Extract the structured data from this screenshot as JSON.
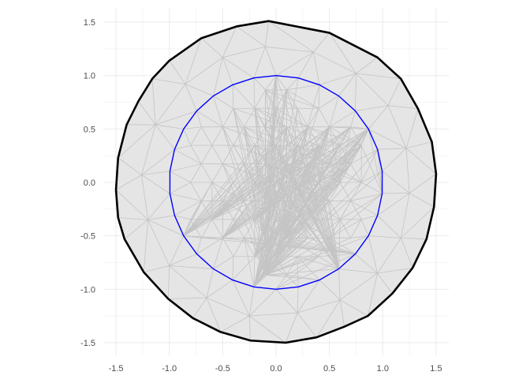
{
  "chart_data": {
    "type": "mesh",
    "title": "",
    "xlabel": "",
    "ylabel": "",
    "xlim": [
      -1.62,
      1.62
    ],
    "ylim": [
      -1.63,
      1.63
    ],
    "x_ticks": [
      -1.5,
      -1.0,
      -0.5,
      0.0,
      0.5,
      1.0,
      1.5
    ],
    "y_ticks": [
      -1.5,
      -1.0,
      -0.5,
      0.0,
      0.5,
      1.0,
      1.5
    ],
    "x_tick_labels": [
      "-1.5",
      "-1.0",
      "-0.5",
      "0.0",
      "0.5",
      "1.0",
      "1.5"
    ],
    "y_tick_labels": [
      "-1.5",
      "-1.0",
      "-0.5",
      "0.0",
      "0.5",
      "1.0",
      "1.5"
    ],
    "grid": true,
    "colors": {
      "fill": "#e5e5e5",
      "mesh": "#c4c4c4",
      "outer_boundary": "#000000",
      "inner_boundary": "#0000ff",
      "grid": "#ebebeb"
    },
    "outer_boundary": [
      [
        -0.07,
        1.51
      ],
      [
        0.5,
        1.4
      ],
      [
        0.95,
        1.17
      ],
      [
        1.17,
        0.97
      ],
      [
        1.33,
        0.69
      ],
      [
        1.46,
        0.38
      ],
      [
        1.5,
        0.08
      ],
      [
        1.48,
        -0.23
      ],
      [
        1.41,
        -0.53
      ],
      [
        1.28,
        -0.8
      ],
      [
        1.09,
        -1.04
      ],
      [
        0.86,
        -1.25
      ],
      [
        0.64,
        -1.35
      ],
      [
        0.38,
        -1.45
      ],
      [
        0.09,
        -1.5
      ],
      [
        -0.24,
        -1.48
      ],
      [
        -0.52,
        -1.4
      ],
      [
        -0.78,
        -1.27
      ],
      [
        -1.01,
        -1.09
      ],
      [
        -1.24,
        -0.84
      ],
      [
        -1.42,
        -0.53
      ],
      [
        -1.48,
        -0.33
      ],
      [
        -1.5,
        -0.07
      ],
      [
        -1.48,
        0.23
      ],
      [
        -1.4,
        0.54
      ],
      [
        -1.29,
        0.76
      ],
      [
        -1.16,
        0.97
      ],
      [
        -1.0,
        1.14
      ],
      [
        -0.7,
        1.35
      ],
      [
        -0.37,
        1.46
      ]
    ],
    "inner_boundary": {
      "center": [
        0,
        0
      ],
      "radius": 1.0,
      "n_vertices": 30
    },
    "lattice_spacing": 0.2,
    "ring_nodes": [
      [
        -1.13,
        0.54
      ],
      [
        -1.26,
        0.07
      ],
      [
        -1.2,
        -0.35
      ],
      [
        -1.0,
        -0.78
      ],
      [
        -0.65,
        -1.08
      ],
      [
        -0.25,
        -1.25
      ],
      [
        0.2,
        -1.22
      ],
      [
        0.6,
        -1.1
      ],
      [
        0.95,
        -0.85
      ],
      [
        1.17,
        -0.52
      ],
      [
        1.25,
        -0.1
      ],
      [
        1.22,
        0.32
      ],
      [
        1.05,
        0.72
      ],
      [
        0.75,
        1.02
      ],
      [
        0.35,
        1.22
      ],
      [
        -0.1,
        1.27
      ],
      [
        -0.5,
        1.17
      ],
      [
        -0.85,
        0.92
      ]
    ]
  }
}
